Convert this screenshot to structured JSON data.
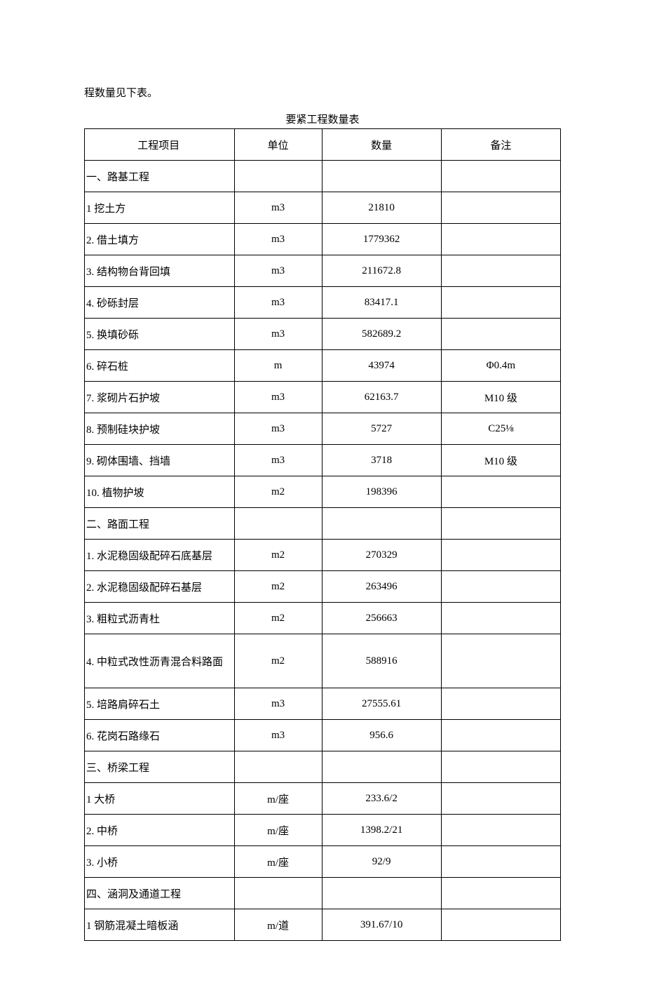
{
  "intro": "程数量见下表。",
  "tableTitle": "要紧工程数量表",
  "headers": {
    "item": "工程项目",
    "unit": "单位",
    "qty": "数量",
    "note": "备注"
  },
  "rows": [
    {
      "item": "一、路基工程",
      "unit": "",
      "qty": "",
      "note": ""
    },
    {
      "item": "1 挖土方",
      "unit": "m3",
      "qty": "21810",
      "note": ""
    },
    {
      "item": "2. 借土填方",
      "unit": "m3",
      "qty": "1779362",
      "note": ""
    },
    {
      "item": "3. 结构物台背回填",
      "unit": "m3",
      "qty": "211672.8",
      "note": ""
    },
    {
      "item": "4. 砂砾封层",
      "unit": "m3",
      "qty": "83417.1",
      "note": ""
    },
    {
      "item": "5. 换填砂砾",
      "unit": "m3",
      "qty": "582689.2",
      "note": ""
    },
    {
      "item": "6. 碎石桩",
      "unit": "m",
      "qty": "43974",
      "note": "Φ0.4m"
    },
    {
      "item": "7. 浆砌片石护坡",
      "unit": "m3",
      "qty": "62163.7",
      "note": "M10 级"
    },
    {
      "item": "8. 预制硅块护坡",
      "unit": "m3",
      "qty": "5727",
      "note": "C25⅛"
    },
    {
      "item": "9. 砌体围墙、挡墙",
      "unit": "m3",
      "qty": "3718",
      "note": "M10 级"
    },
    {
      "item": "10. 植物护坡",
      "unit": "m2",
      "qty": "198396",
      "note": ""
    },
    {
      "item": "二、路面工程",
      "unit": "",
      "qty": "",
      "note": ""
    },
    {
      "item": "1. 水泥稳固级配碎石底基层",
      "unit": "m2",
      "qty": "270329",
      "note": ""
    },
    {
      "item": "2. 水泥稳固级配碎石基层",
      "unit": "m2",
      "qty": "263496",
      "note": ""
    },
    {
      "item": "3. 粗粒式沥青杜",
      "unit": "m2",
      "qty": "256663",
      "note": ""
    },
    {
      "item": "4. 中粒式改性沥青混合料路面",
      "unit": "m2",
      "qty": "588916",
      "note": "",
      "tall": true
    },
    {
      "item": "5. 培路肩碎石土",
      "unit": "m3",
      "qty": "27555.61",
      "note": ""
    },
    {
      "item": "6. 花岗石路缘石",
      "unit": "m3",
      "qty": "956.6",
      "note": ""
    },
    {
      "item": "三、桥梁工程",
      "unit": "",
      "qty": "",
      "note": ""
    },
    {
      "item": "1 大桥",
      "unit": "m/座",
      "qty": "233.6/2",
      "note": ""
    },
    {
      "item": "2. 中桥",
      "unit": "m/座",
      "qty": "1398.2/21",
      "note": ""
    },
    {
      "item": "3. 小桥",
      "unit": "m/座",
      "qty": "92/9",
      "note": ""
    },
    {
      "item": "四、涵洞及通道工程",
      "unit": "",
      "qty": "",
      "note": ""
    },
    {
      "item": "1 钢筋混凝土暗板涵",
      "unit": "m/道",
      "qty": "391.67/10",
      "note": ""
    }
  ]
}
